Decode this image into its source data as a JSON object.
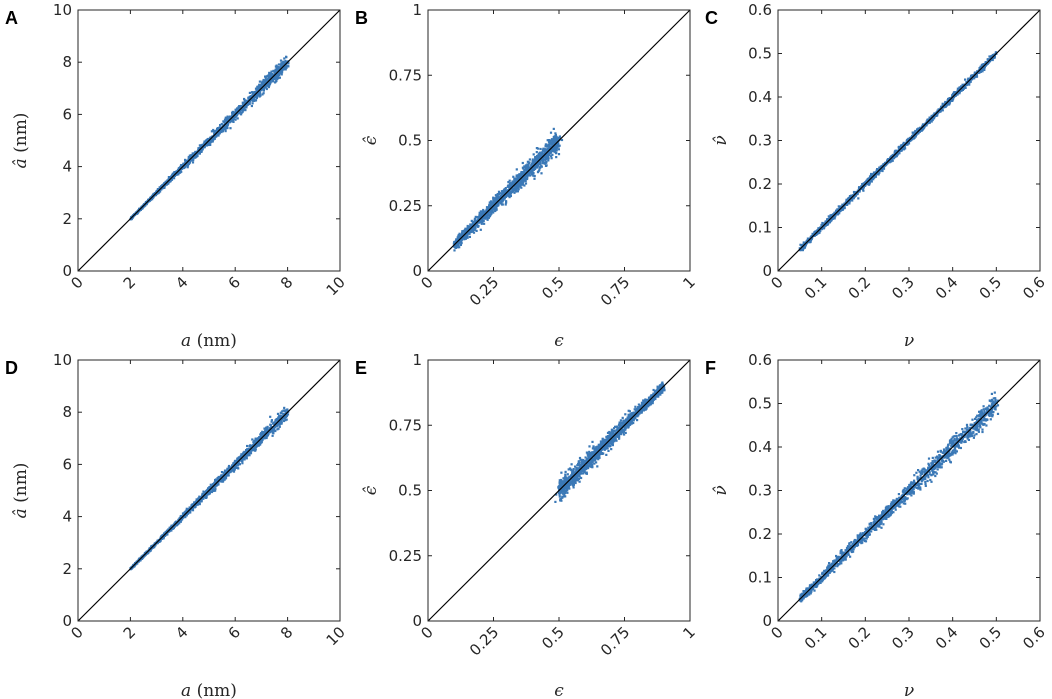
{
  "figure": {
    "columns": 3,
    "rows": 2
  },
  "chart_data": [
    {
      "panel": "A",
      "type": "scatter",
      "xlabel_var": "a",
      "xlabel_unit": "(nm)",
      "ylabel_var": "â",
      "ylabel_unit": "(nm)",
      "xlim": [
        0,
        10
      ],
      "ylim": [
        0,
        10
      ],
      "xticks": [
        0,
        2,
        4,
        6,
        8,
        10
      ],
      "yticks": [
        0,
        2,
        4,
        6,
        8,
        10
      ],
      "xtick_labels": [
        "0",
        "2",
        "4",
        "6",
        "8",
        "10"
      ],
      "ytick_labels": [
        "0",
        "2",
        "4",
        "6",
        "8",
        "10"
      ],
      "rotate_xticks": true,
      "reference_line": "y = x",
      "cloud": {
        "x_range": [
          2,
          8
        ],
        "spread_at_min": 0.03,
        "spread_at_max": 0.25
      }
    },
    {
      "panel": "B",
      "type": "scatter",
      "xlabel_var": "ϵ",
      "xlabel_unit": "",
      "ylabel_var": "ϵ̂",
      "ylabel_unit": "",
      "xlim": [
        0,
        1
      ],
      "ylim": [
        0,
        1
      ],
      "xticks": [
        0,
        0.25,
        0.5,
        0.75,
        1
      ],
      "yticks": [
        0,
        0.25,
        0.5,
        0.75,
        1
      ],
      "xtick_labels": [
        "0",
        "0.25",
        "0.5",
        "0.75",
        "1"
      ],
      "ytick_labels": [
        "0",
        "0.25",
        "0.5",
        "0.75",
        "1"
      ],
      "rotate_xticks": true,
      "reference_line": "y = x",
      "cloud": {
        "x_range": [
          0.1,
          0.5
        ],
        "spread_at_min": 0.015,
        "spread_at_max": 0.035
      }
    },
    {
      "panel": "C",
      "type": "scatter",
      "xlabel_var": "ν",
      "xlabel_unit": "",
      "ylabel_var": "ν̂",
      "ylabel_unit": "",
      "xlim": [
        0,
        0.6
      ],
      "ylim": [
        0,
        0.6
      ],
      "xticks": [
        0,
        0.1,
        0.2,
        0.3,
        0.4,
        0.5,
        0.6
      ],
      "yticks": [
        0,
        0.1,
        0.2,
        0.3,
        0.4,
        0.5,
        0.6
      ],
      "xtick_labels": [
        "0",
        "0.1",
        "0.2",
        "0.3",
        "0.4",
        "0.5",
        "0.6"
      ],
      "ytick_labels": [
        "0",
        "0.1",
        "0.2",
        "0.3",
        "0.4",
        "0.5",
        "0.6"
      ],
      "rotate_xticks": true,
      "reference_line": "y = x",
      "cloud": {
        "x_range": [
          0.05,
          0.5
        ],
        "spread_at_min": 0.006,
        "spread_at_max": 0.006
      }
    },
    {
      "panel": "D",
      "type": "scatter",
      "xlabel_var": "a",
      "xlabel_unit": "(nm)",
      "ylabel_var": "â",
      "ylabel_unit": "(nm)",
      "xlim": [
        0,
        10
      ],
      "ylim": [
        0,
        10
      ],
      "xticks": [
        0,
        2,
        4,
        6,
        8,
        10
      ],
      "yticks": [
        0,
        2,
        4,
        6,
        8,
        10
      ],
      "xtick_labels": [
        "0",
        "2",
        "4",
        "6",
        "8",
        "10"
      ],
      "ytick_labels": [
        "0",
        "2",
        "4",
        "6",
        "8",
        "10"
      ],
      "rotate_xticks": true,
      "reference_line": "y = x",
      "cloud": {
        "x_range": [
          2,
          8
        ],
        "spread_at_min": 0.03,
        "spread_at_max": 0.22
      }
    },
    {
      "panel": "E",
      "type": "scatter",
      "xlabel_var": "ϵ",
      "xlabel_unit": "",
      "ylabel_var": "ϵ̂",
      "ylabel_unit": "",
      "xlim": [
        0,
        1
      ],
      "ylim": [
        0,
        1
      ],
      "xticks": [
        0,
        0.25,
        0.5,
        0.75,
        1
      ],
      "yticks": [
        0,
        0.25,
        0.5,
        0.75,
        1
      ],
      "xtick_labels": [
        "0",
        "0.25",
        "0.5",
        "0.75",
        "1"
      ],
      "ytick_labels": [
        "0",
        "0.25",
        "0.5",
        "0.75",
        "1"
      ],
      "rotate_xticks": true,
      "reference_line": "y = x",
      "cloud": {
        "x_range": [
          0.5,
          0.9
        ],
        "spread_at_min": 0.035,
        "spread_at_max": 0.015
      }
    },
    {
      "panel": "F",
      "type": "scatter",
      "xlabel_var": "ν",
      "xlabel_unit": "",
      "ylabel_var": "ν̂",
      "ylabel_unit": "",
      "xlim": [
        0,
        0.6
      ],
      "ylim": [
        0,
        0.6
      ],
      "xticks": [
        0,
        0.1,
        0.2,
        0.3,
        0.4,
        0.5,
        0.6
      ],
      "yticks": [
        0,
        0.1,
        0.2,
        0.3,
        0.4,
        0.5,
        0.6
      ],
      "xtick_labels": [
        "0",
        "0.1",
        "0.2",
        "0.3",
        "0.4",
        "0.5",
        "0.6"
      ],
      "ytick_labels": [
        "0",
        "0.1",
        "0.2",
        "0.3",
        "0.4",
        "0.5",
        "0.6"
      ],
      "rotate_xticks": true,
      "reference_line": "y = x",
      "cloud": {
        "x_range": [
          0.05,
          0.5
        ],
        "spread_at_min": 0.008,
        "spread_at_max": 0.022
      }
    }
  ],
  "colors": {
    "points": "#3a78b6",
    "reference_line": "#000000",
    "axes": "#262626"
  }
}
